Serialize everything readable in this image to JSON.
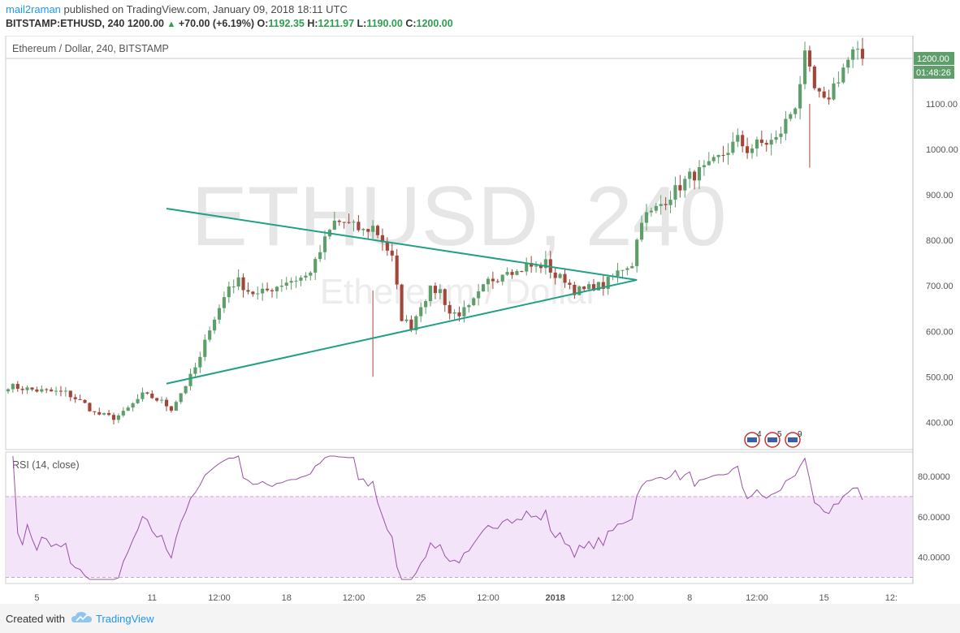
{
  "header": {
    "user": "mail2raman",
    "published_text": "published on TradingView.com, January 09, 2018 18:11 UTC",
    "symbol": "BITSTAMP:ETHUSD, 240",
    "last": "1200.00",
    "arrow": "▲",
    "change": "+70.00 (+6.19%)",
    "o_label": "O:",
    "o_value": "1192.35",
    "h_label": "H:",
    "h_value": "1211.97",
    "l_label": "L:",
    "l_value": "1190.00",
    "c_label": "C:",
    "c_value": "1200.00"
  },
  "footer": {
    "created_with": "Created with",
    "brand": "TradingView",
    "logo_icon": "tradingview-cloud-icon"
  },
  "colors": {
    "up": "#5e9e6a",
    "down": "#a3463a",
    "trend": "#21a086",
    "rsi": "#9a50a6",
    "rsi_band": "#f3e4fa",
    "accent": "#2196f3"
  },
  "chart_data": [
    {
      "type": "candlestick",
      "title": "Ethereum / Dollar, 240, BITSTAMP",
      "watermark": "ETHUSD, 240",
      "watermark_sub": "Ethereum / Dollar",
      "ylim": [
        340,
        1250
      ],
      "y_ticks": [
        "1100.00",
        "1000.00",
        "900.00",
        "800.00",
        "700.00",
        "600.00",
        "500.00",
        "400.00"
      ],
      "last_price_label": "1200.00",
      "countdown_label": "01:48:26",
      "event_badges": [
        "4",
        "5",
        "9"
      ],
      "event_icon": "us-flag-icon",
      "path_points": [
        [
          0,
          480
        ],
        [
          6,
          470
        ],
        [
          12,
          465
        ],
        [
          16,
          440
        ],
        [
          18,
          420
        ],
        [
          20,
          415
        ],
        [
          22,
          410
        ],
        [
          24,
          420
        ],
        [
          26,
          440
        ],
        [
          28,
          460
        ],
        [
          30,
          455
        ],
        [
          32,
          445
        ],
        [
          34,
          430
        ],
        [
          36,
          465
        ],
        [
          38,
          500
        ],
        [
          40,
          540
        ],
        [
          42,
          610
        ],
        [
          44,
          650
        ],
        [
          46,
          700
        ],
        [
          48,
          710
        ],
        [
          50,
          690
        ],
        [
          52,
          680
        ],
        [
          54,
          690
        ],
        [
          56,
          700
        ],
        [
          58,
          710
        ],
        [
          60,
          715
        ],
        [
          62,
          720
        ],
        [
          64,
          750
        ],
        [
          66,
          800
        ],
        [
          68,
          840
        ],
        [
          70,
          840
        ],
        [
          72,
          830
        ],
        [
          74,
          820
        ],
        [
          76,
          830
        ],
        [
          78,
          800
        ],
        [
          80,
          760
        ],
        [
          82,
          630
        ],
        [
          84,
          610
        ],
        [
          86,
          660
        ],
        [
          88,
          690
        ],
        [
          90,
          690
        ],
        [
          92,
          640
        ],
        [
          94,
          640
        ],
        [
          96,
          650
        ],
        [
          98,
          680
        ],
        [
          100,
          710
        ],
        [
          102,
          720
        ],
        [
          104,
          740
        ],
        [
          106,
          730
        ],
        [
          108,
          745
        ],
        [
          110,
          740
        ],
        [
          112,
          750
        ],
        [
          114,
          720
        ],
        [
          116,
          715
        ],
        [
          118,
          690
        ],
        [
          120,
          690
        ],
        [
          122,
          700
        ],
        [
          124,
          700
        ],
        [
          126,
          720
        ],
        [
          128,
          740
        ],
        [
          130,
          750
        ],
        [
          132,
          850
        ],
        [
          134,
          860
        ],
        [
          136,
          880
        ],
        [
          138,
          900
        ],
        [
          140,
          920
        ],
        [
          142,
          940
        ],
        [
          144,
          950
        ],
        [
          146,
          960
        ],
        [
          148,
          980
        ],
        [
          150,
          1000
        ],
        [
          152,
          1020
        ],
        [
          154,
          1000
        ],
        [
          156,
          1010
        ],
        [
          158,
          1015
        ],
        [
          160,
          1020
        ],
        [
          162,
          1060
        ],
        [
          164,
          1100
        ],
        [
          166,
          1200
        ],
        [
          168,
          1130
        ],
        [
          170,
          1100
        ],
        [
          172,
          1140
        ],
        [
          174,
          1180
        ],
        [
          176,
          1210
        ],
        [
          178,
          1200
        ]
      ],
      "trendlines": [
        {
          "name": "upper",
          "from": [
            33,
            870
          ],
          "to": [
            131,
            713
          ]
        },
        {
          "name": "lower",
          "from": [
            33,
            485
          ],
          "to": [
            131,
            713
          ]
        }
      ],
      "x_ticks": [
        {
          "label": "5",
          "i": 6
        },
        {
          "label": "11",
          "i": 30
        },
        {
          "label": "12:00",
          "i": 44
        },
        {
          "label": "18",
          "i": 58
        },
        {
          "label": "12:00",
          "i": 72
        },
        {
          "label": "25",
          "i": 86
        },
        {
          "label": "12:00",
          "i": 100
        },
        {
          "label": "2018",
          "i": 114,
          "bold": true
        },
        {
          "label": "12:00",
          "i": 128
        },
        {
          "label": "8",
          "i": 142
        },
        {
          "label": "12:00",
          "i": 156
        },
        {
          "label": "15",
          "i": 170
        },
        {
          "label": "12:",
          "i": 184
        }
      ]
    },
    {
      "type": "line",
      "title": "RSI (14, close)",
      "ylim": [
        27,
        92
      ],
      "band": [
        30,
        70
      ],
      "y_ticks": [
        "80.0000",
        "60.0000",
        "40.0000"
      ],
      "last_value": 66
    }
  ]
}
